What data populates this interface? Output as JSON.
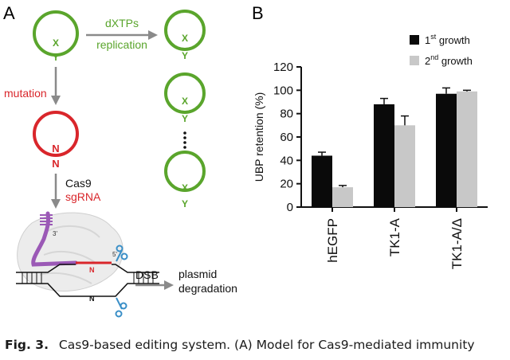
{
  "panel_a": {
    "label": "A",
    "top_arrow_label_1": "dXTPs",
    "top_arrow_label_2": "replication",
    "mutation_label": "mutation",
    "cas9_label": "Cas9",
    "sgrna_label": "sgRNA",
    "base_x": "X",
    "base_y": "Y",
    "base_n": "N",
    "dsb_label": "DSB",
    "outcome_line_1": "plasmid",
    "outcome_line_2": "degradation",
    "prime_5": "5'",
    "prime_3": "3'",
    "colors": {
      "green": "#5aa52c",
      "red": "#d9262b",
      "gray": "#8a8a8a",
      "purple": "#9b59b6",
      "blue": "#3a8fc7"
    }
  },
  "panel_b": {
    "label": "B",
    "legend": [
      {
        "base": "1",
        "sup": "st",
        "rest": " growth"
      },
      {
        "base": "2",
        "sup": "nd",
        "rest": " growth"
      }
    ]
  },
  "chart_data": {
    "type": "bar",
    "categories": [
      "hEGFP",
      "TK1-A",
      "TK1-A/Δ"
    ],
    "series": [
      {
        "name": "1st growth",
        "values": [
          44,
          88,
          97
        ],
        "errors": [
          3,
          5,
          5
        ],
        "color": "#0a0a0a"
      },
      {
        "name": "2nd growth",
        "values": [
          17,
          70,
          99
        ],
        "errors": [
          1.5,
          8,
          1
        ],
        "color": "#c8c8c8"
      }
    ],
    "ylabel": "UBP retention (%)",
    "ylim": [
      0,
      120
    ],
    "yticks": [
      0,
      20,
      40,
      60,
      80,
      100,
      120
    ],
    "grid": false,
    "legend_position": "top-right"
  },
  "caption": {
    "fig_label": "Fig. 3.",
    "text": "Cas9-based editing system. (A) Model for Cas9-mediated immunity"
  }
}
